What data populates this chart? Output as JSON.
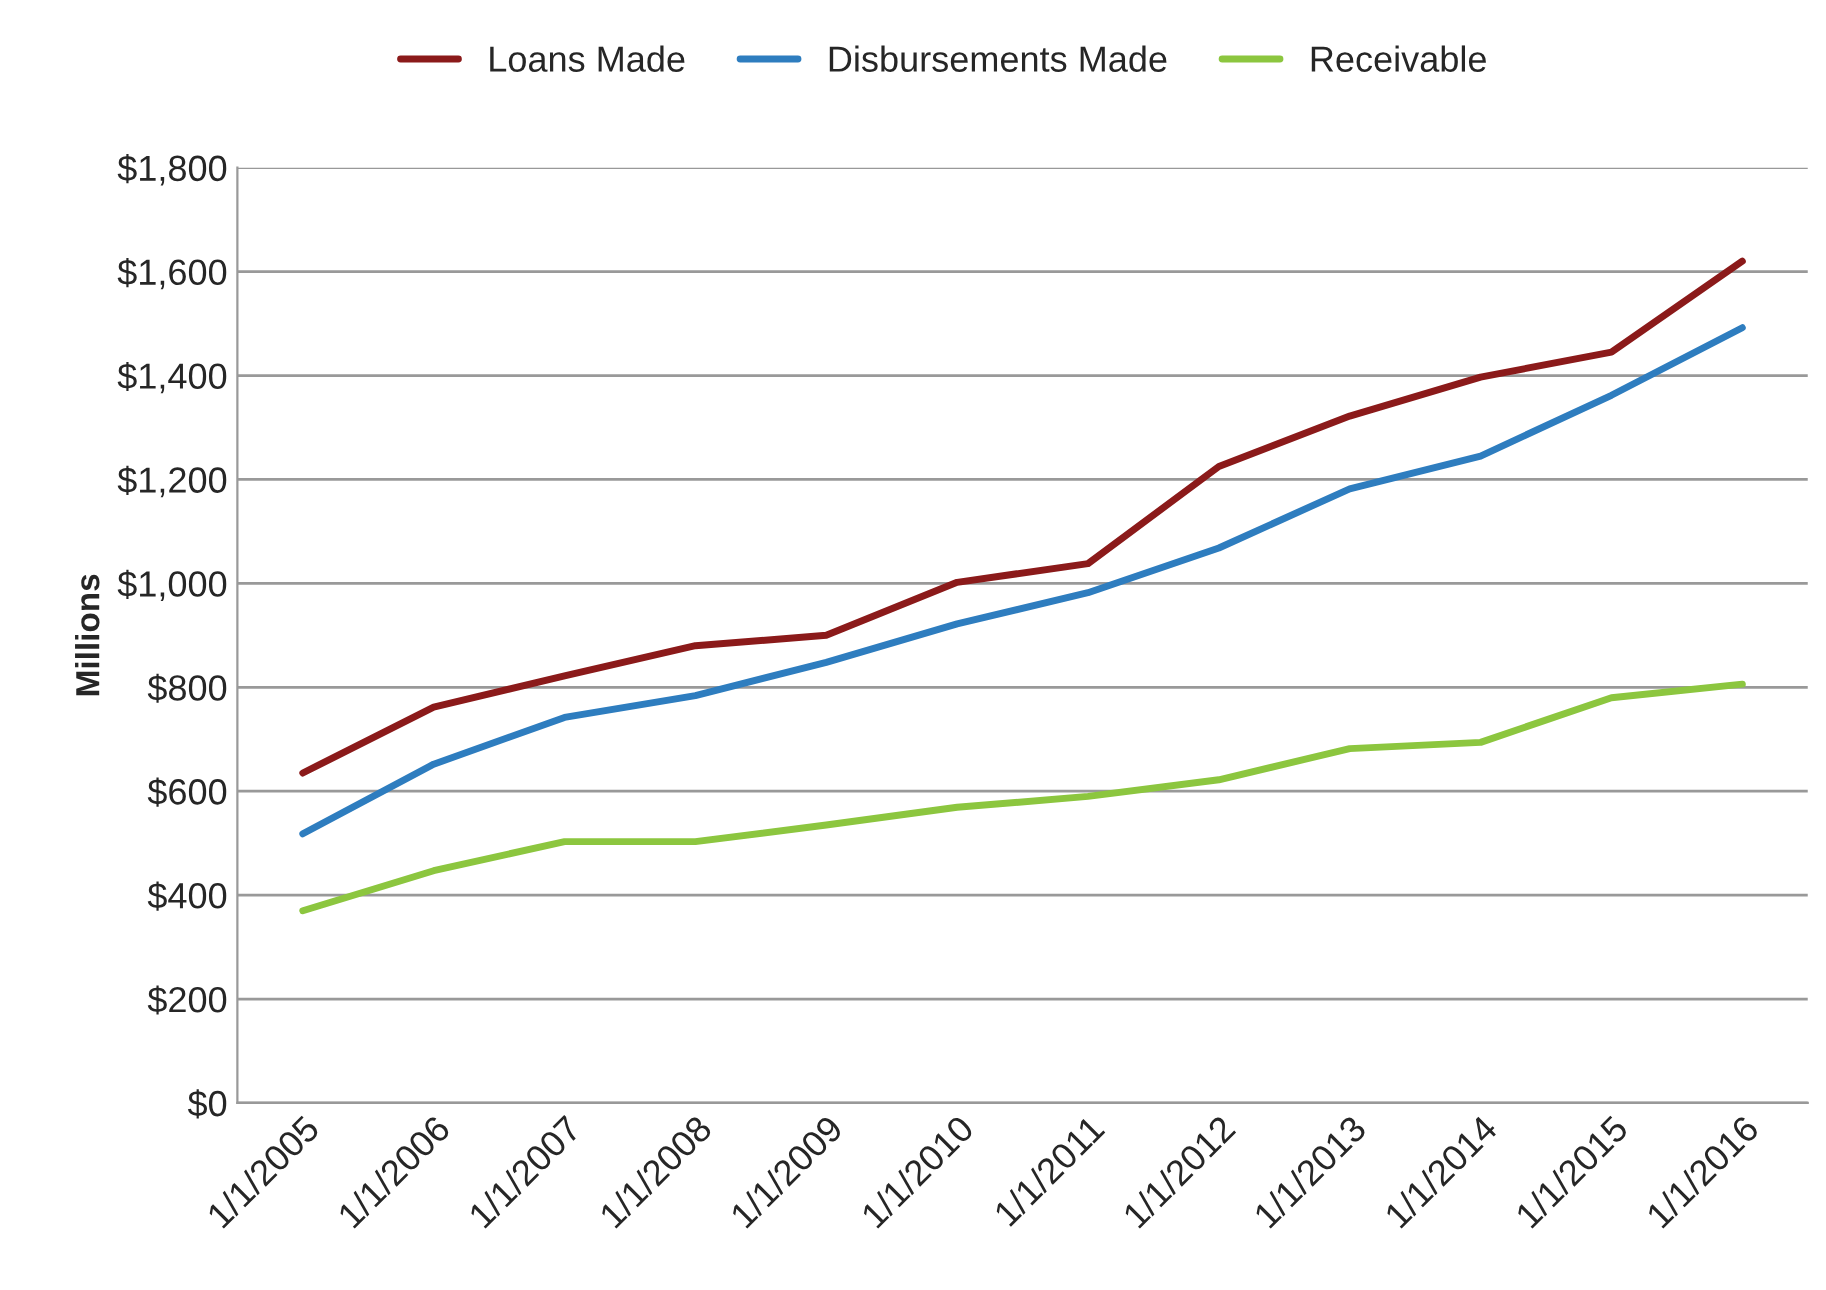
{
  "chart_data": {
    "type": "line",
    "ylabel": "Millions",
    "categories": [
      "1/1/2005",
      "1/1/2006",
      "1/1/2007",
      "1/1/2008",
      "1/1/2009",
      "1/1/2010",
      "1/1/2011",
      "1/1/2012",
      "1/1/2013",
      "1/1/2014",
      "1/1/2015",
      "1/1/2016"
    ],
    "series": [
      {
        "name": "Loans Made",
        "color": "#8b1a1a",
        "values": [
          635,
          762,
          822,
          880,
          900,
          1002,
          1038,
          1225,
          1322,
          1397,
          1445,
          1620
        ]
      },
      {
        "name": "Disbursements Made",
        "color": "#2e7dbf",
        "values": [
          518,
          652,
          742,
          784,
          848,
          922,
          982,
          1068,
          1182,
          1245,
          1362,
          1492
        ]
      },
      {
        "name": "Receivable",
        "color": "#8cc63f",
        "values": [
          370,
          447,
          503,
          503,
          535,
          569,
          590,
          622,
          682,
          694,
          780,
          806
        ]
      }
    ],
    "ylim": [
      0,
      1800
    ],
    "yticks": [
      {
        "value": 0,
        "label": "$0"
      },
      {
        "value": 200,
        "label": "$200"
      },
      {
        "value": 400,
        "label": "$400"
      },
      {
        "value": 600,
        "label": "$600"
      },
      {
        "value": 800,
        "label": "$800"
      },
      {
        "value": 1000,
        "label": "$1,000"
      },
      {
        "value": 1200,
        "label": "$1,200"
      },
      {
        "value": 1400,
        "label": "$1,400"
      },
      {
        "value": 1600,
        "label": "$1,600"
      },
      {
        "value": 1800,
        "label": "$1,800"
      }
    ],
    "grid": "y",
    "legend": "top",
    "marker": "none",
    "line_style": "solid"
  }
}
